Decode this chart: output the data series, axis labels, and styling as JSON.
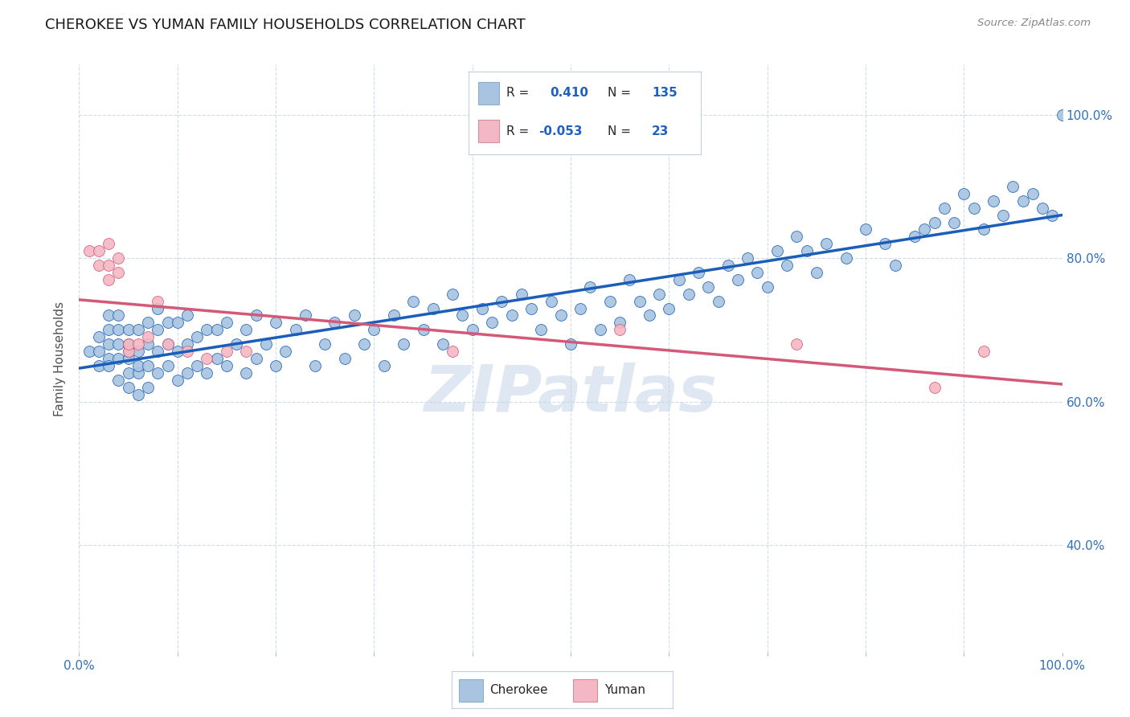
{
  "title": "CHEROKEE VS YUMAN FAMILY HOUSEHOLDS CORRELATION CHART",
  "source": "Source: ZipAtlas.com",
  "ylabel": "Family Households",
  "xlim": [
    0,
    1
  ],
  "ylim": [
    0.25,
    1.07
  ],
  "yticks": [
    0.4,
    0.6,
    0.8,
    1.0
  ],
  "ytick_labels": [
    "40.0%",
    "60.0%",
    "80.0%",
    "100.0%"
  ],
  "cherokee_color": "#a8c4e0",
  "yuman_color": "#f4b8c4",
  "cherokee_line_color": "#1a5eb8",
  "yuman_line_color": "#d45878",
  "watermark": "ZIPatlas",
  "watermark_color": "#c8d8ea",
  "legend_cherokee_box": "#a8c4e0",
  "legend_yuman_box": "#f4b8c4",
  "legend_text_color": "#2060c0",
  "legend_border_color": "#b0c8e0",
  "cherokee_x": [
    0.01,
    0.02,
    0.02,
    0.02,
    0.03,
    0.03,
    0.03,
    0.03,
    0.03,
    0.04,
    0.04,
    0.04,
    0.04,
    0.04,
    0.05,
    0.05,
    0.05,
    0.05,
    0.05,
    0.05,
    0.06,
    0.06,
    0.06,
    0.06,
    0.06,
    0.07,
    0.07,
    0.07,
    0.07,
    0.08,
    0.08,
    0.08,
    0.08,
    0.09,
    0.09,
    0.09,
    0.1,
    0.1,
    0.1,
    0.11,
    0.11,
    0.11,
    0.12,
    0.12,
    0.13,
    0.13,
    0.14,
    0.14,
    0.15,
    0.15,
    0.16,
    0.17,
    0.17,
    0.18,
    0.18,
    0.19,
    0.2,
    0.2,
    0.21,
    0.22,
    0.23,
    0.24,
    0.25,
    0.26,
    0.27,
    0.28,
    0.29,
    0.3,
    0.31,
    0.32,
    0.33,
    0.34,
    0.35,
    0.36,
    0.37,
    0.38,
    0.39,
    0.4,
    0.41,
    0.42,
    0.43,
    0.44,
    0.45,
    0.46,
    0.47,
    0.48,
    0.49,
    0.5,
    0.51,
    0.52,
    0.53,
    0.54,
    0.55,
    0.56,
    0.57,
    0.58,
    0.59,
    0.6,
    0.61,
    0.62,
    0.63,
    0.64,
    0.65,
    0.66,
    0.67,
    0.68,
    0.69,
    0.7,
    0.71,
    0.72,
    0.73,
    0.74,
    0.75,
    0.76,
    0.78,
    0.8,
    0.82,
    0.83,
    0.85,
    0.86,
    0.87,
    0.88,
    0.89,
    0.9,
    0.91,
    0.92,
    0.93,
    0.94,
    0.95,
    0.96,
    0.97,
    0.98,
    0.99,
    1.0
  ],
  "cherokee_y": [
    0.67,
    0.65,
    0.67,
    0.69,
    0.66,
    0.68,
    0.7,
    0.72,
    0.65,
    0.63,
    0.66,
    0.68,
    0.7,
    0.72,
    0.62,
    0.64,
    0.66,
    0.68,
    0.7,
    0.67,
    0.61,
    0.64,
    0.67,
    0.7,
    0.65,
    0.62,
    0.65,
    0.68,
    0.71,
    0.64,
    0.67,
    0.7,
    0.73,
    0.65,
    0.68,
    0.71,
    0.63,
    0.67,
    0.71,
    0.64,
    0.68,
    0.72,
    0.65,
    0.69,
    0.64,
    0.7,
    0.66,
    0.7,
    0.65,
    0.71,
    0.68,
    0.64,
    0.7,
    0.66,
    0.72,
    0.68,
    0.65,
    0.71,
    0.67,
    0.7,
    0.72,
    0.65,
    0.68,
    0.71,
    0.66,
    0.72,
    0.68,
    0.7,
    0.65,
    0.72,
    0.68,
    0.74,
    0.7,
    0.73,
    0.68,
    0.75,
    0.72,
    0.7,
    0.73,
    0.71,
    0.74,
    0.72,
    0.75,
    0.73,
    0.7,
    0.74,
    0.72,
    0.68,
    0.73,
    0.76,
    0.7,
    0.74,
    0.71,
    0.77,
    0.74,
    0.72,
    0.75,
    0.73,
    0.77,
    0.75,
    0.78,
    0.76,
    0.74,
    0.79,
    0.77,
    0.8,
    0.78,
    0.76,
    0.81,
    0.79,
    0.83,
    0.81,
    0.78,
    0.82,
    0.8,
    0.84,
    0.82,
    0.79,
    0.83,
    0.84,
    0.85,
    0.87,
    0.85,
    0.89,
    0.87,
    0.84,
    0.88,
    0.86,
    0.9,
    0.88,
    0.89,
    0.87,
    0.86,
    1.0
  ],
  "yuman_x": [
    0.01,
    0.02,
    0.02,
    0.03,
    0.03,
    0.03,
    0.04,
    0.04,
    0.05,
    0.05,
    0.06,
    0.07,
    0.08,
    0.09,
    0.11,
    0.13,
    0.15,
    0.17,
    0.38,
    0.55,
    0.73,
    0.87,
    0.92
  ],
  "yuman_y": [
    0.81,
    0.79,
    0.81,
    0.77,
    0.79,
    0.82,
    0.78,
    0.8,
    0.67,
    0.68,
    0.68,
    0.69,
    0.74,
    0.68,
    0.67,
    0.66,
    0.67,
    0.67,
    0.67,
    0.7,
    0.68,
    0.62,
    0.67
  ]
}
